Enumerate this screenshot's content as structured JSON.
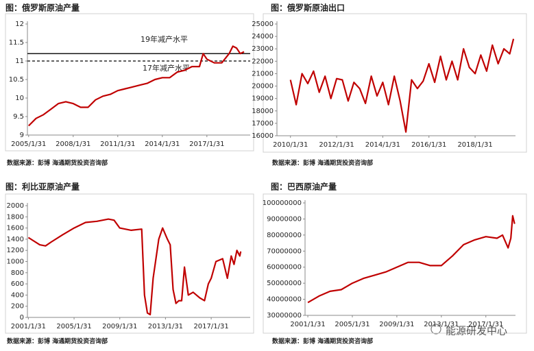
{
  "chart_data": [
    {
      "type": "line",
      "title": "图：俄罗斯原油产量",
      "source": "数据来源：彭博    海通期货投资咨询部",
      "color": "#c00000",
      "x": [
        "2005/1/31",
        "2005/7/31",
        "2006/1/31",
        "2006/7/31",
        "2007/1/31",
        "2007/7/31",
        "2008/1/31",
        "2008/7/31",
        "2009/1/31",
        "2009/7/31",
        "2010/1/31",
        "2010/7/31",
        "2011/1/31",
        "2011/7/31",
        "2012/1/31",
        "2012/7/31",
        "2013/1/31",
        "2013/7/31",
        "2014/1/31",
        "2014/7/31",
        "2015/1/31",
        "2015/7/31",
        "2016/1/31",
        "2016/7/31",
        "2016/10/31",
        "2017/1/31",
        "2017/7/31",
        "2018/1/31",
        "2018/7/31",
        "2018/10/31",
        "2019/1/31",
        "2019/4/30",
        "2019/7/31"
      ],
      "values": [
        9.25,
        9.45,
        9.55,
        9.7,
        9.85,
        9.9,
        9.85,
        9.75,
        9.75,
        9.95,
        10.05,
        10.1,
        10.2,
        10.25,
        10.3,
        10.35,
        10.4,
        10.5,
        10.55,
        10.55,
        10.7,
        10.75,
        10.85,
        10.85,
        11.2,
        11.05,
        10.95,
        10.95,
        11.2,
        11.4,
        11.35,
        11.2,
        11.25
      ],
      "xlim": [
        "2005/1/1",
        "2019/12/31"
      ],
      "xticks": [
        "2005/1/31",
        "2008/1/31",
        "2011/1/31",
        "2014/1/31",
        "2017/1/31"
      ],
      "ylim": [
        9,
        12
      ],
      "yticks": [
        9,
        9.5,
        10,
        10.5,
        11,
        11.5,
        12
      ],
      "hlines": [
        {
          "label": "19年减产水平",
          "value": 11.2,
          "style": "solid"
        },
        {
          "label": "17年减产水平",
          "value": 11.0,
          "style": "dashed"
        }
      ]
    },
    {
      "type": "line",
      "title": "图：俄罗斯原油出口",
      "source": "数据来源：彭博    海通期货投资咨询部",
      "color": "#c00000",
      "x": [
        "2010/1/31",
        "2010/4/30",
        "2010/7/31",
        "2010/10/31",
        "2011/1/31",
        "2011/4/30",
        "2011/7/31",
        "2011/10/31",
        "2012/1/31",
        "2012/4/30",
        "2012/7/31",
        "2012/10/31",
        "2013/1/31",
        "2013/4/30",
        "2013/7/31",
        "2013/10/31",
        "2014/1/31",
        "2014/4/30",
        "2014/7/31",
        "2014/10/31",
        "2015/1/31",
        "2015/4/30",
        "2015/7/31",
        "2015/10/31",
        "2016/1/31",
        "2016/4/30",
        "2016/7/31",
        "2016/10/31",
        "2017/1/31",
        "2017/4/30",
        "2017/7/31",
        "2017/10/31",
        "2018/1/31",
        "2018/4/30",
        "2018/7/31",
        "2018/10/31",
        "2019/1/31",
        "2019/4/30",
        "2019/7/31",
        "2019/9/30"
      ],
      "values": [
        20500,
        18500,
        21000,
        20200,
        21200,
        19500,
        20800,
        19000,
        20600,
        20500,
        18800,
        20300,
        19800,
        18600,
        20800,
        19200,
        20300,
        18500,
        20800,
        18800,
        16300,
        20500,
        19800,
        20400,
        21800,
        20300,
        22400,
        20500,
        22000,
        20500,
        23000,
        21500,
        21000,
        22500,
        21200,
        23300,
        21800,
        23000,
        22600,
        23800
      ],
      "xlim": [
        "2009/6/30",
        "2019/10/31"
      ],
      "xticks": [
        "2010/1/31",
        "2012/1/31",
        "2014/1/31",
        "2016/1/31",
        "2018/1/31"
      ],
      "ylim": [
        16000,
        25000
      ],
      "yticks": [
        16000,
        17000,
        18000,
        19000,
        20000,
        21000,
        22000,
        23000,
        24000,
        25000
      ]
    },
    {
      "type": "line",
      "title": "图：利比亚原油产量",
      "source": "数据来源：彭博    海通期货投资咨询部",
      "color": "#c00000",
      "x": [
        "2001/1/31",
        "2002/1/31",
        "2002/7/31",
        "2003/1/31",
        "2004/1/31",
        "2005/1/31",
        "2006/1/31",
        "2007/1/31",
        "2008/1/31",
        "2008/7/31",
        "2009/1/31",
        "2010/1/31",
        "2010/12/31",
        "2011/3/31",
        "2011/6/30",
        "2011/9/30",
        "2011/12/31",
        "2012/6/30",
        "2012/10/31",
        "2013/3/31",
        "2013/6/30",
        "2013/9/30",
        "2013/12/31",
        "2014/3/31",
        "2014/6/30",
        "2014/9/30",
        "2015/1/31",
        "2015/6/30",
        "2016/1/31",
        "2016/6/30",
        "2016/10/31",
        "2017/1/31",
        "2017/6/30",
        "2018/1/31",
        "2018/6/30",
        "2018/10/31",
        "2019/1/31",
        "2019/4/30",
        "2019/7/31",
        "2019/8/31"
      ],
      "values": [
        1430,
        1300,
        1280,
        1350,
        1480,
        1600,
        1700,
        1720,
        1760,
        1740,
        1600,
        1560,
        1580,
        400,
        80,
        50,
        700,
        1400,
        1600,
        1400,
        1300,
        500,
        250,
        300,
        300,
        900,
        400,
        450,
        350,
        300,
        600,
        700,
        1000,
        1050,
        700,
        1100,
        950,
        1200,
        1100,
        1180
      ],
      "xlim": [
        "2001/1/1",
        "2020/6/30"
      ],
      "xticks": [
        "2001/1/31",
        "2005/1/31",
        "2009/1/31",
        "2013/1/31",
        "2017/1/31"
      ],
      "ylim": [
        0,
        2000
      ],
      "yticks": [
        0,
        200,
        400,
        600,
        800,
        1000,
        1200,
        1400,
        1600,
        1800,
        2000
      ]
    },
    {
      "type": "line",
      "title": "图：巴西原油产量",
      "source": "数据来源：彭博    海通期货投资咨询部",
      "color": "#c00000",
      "x": [
        "2001/1/31",
        "2002/1/31",
        "2003/1/31",
        "2004/1/31",
        "2005/1/31",
        "2006/1/31",
        "2007/1/31",
        "2008/1/31",
        "2009/1/31",
        "2010/1/31",
        "2011/1/31",
        "2012/1/31",
        "2013/1/31",
        "2014/1/31",
        "2015/1/31",
        "2016/1/31",
        "2017/1/31",
        "2018/1/31",
        "2018/7/31",
        "2019/1/31",
        "2019/4/30",
        "2019/6/30",
        "2019/8/31"
      ],
      "values": [
        38000000,
        42000000,
        45000000,
        46000000,
        50000000,
        53000000,
        55000000,
        57000000,
        60000000,
        63000000,
        63000000,
        61000000,
        61000000,
        67000000,
        74000000,
        77000000,
        79000000,
        78000000,
        80000000,
        72000000,
        78000000,
        92000000,
        87000000
      ],
      "xlim": [
        "2000/10/31",
        "2019/9/30"
      ],
      "xticks": [
        "2001/1/31",
        "2005/1/31",
        "2009/1/31",
        "2013/1/31",
        "2017/1/31"
      ],
      "ylim": [
        30000000,
        100000000
      ],
      "yticks": [
        30000000,
        40000000,
        50000000,
        60000000,
        70000000,
        80000000,
        90000000,
        100000000
      ]
    }
  ],
  "watermark": "能源研发中心"
}
